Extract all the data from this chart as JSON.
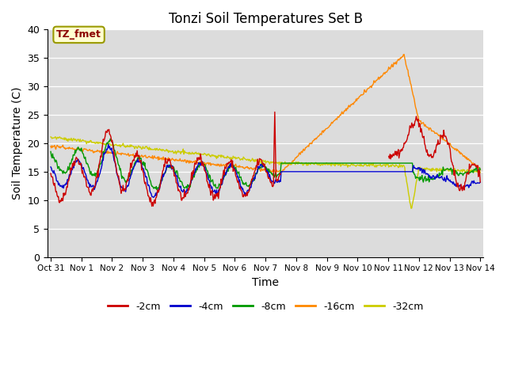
{
  "title": "Tonzi Soil Temperatures Set B",
  "xlabel": "Time",
  "ylabel": "Soil Temperature (C)",
  "ylim": [
    0,
    40
  ],
  "yticks": [
    0,
    5,
    10,
    15,
    20,
    25,
    30,
    35,
    40
  ],
  "annotation_label": "TZ_fmet",
  "annotation_color": "#8B0000",
  "annotation_bg": "#FFFFD0",
  "annotation_edge": "#999900",
  "bg_color": "#E8E8E8",
  "plot_bg": "#DCDCDC",
  "line_colors": {
    "-2cm": "#CC0000",
    "-4cm": "#0000CC",
    "-8cm": "#009900",
    "-16cm": "#FF8800",
    "-32cm": "#CCCC00"
  },
  "xtick_labels": [
    "Oct 31",
    "Nov 1",
    "Nov 2",
    "Nov 3",
    "Nov 4",
    "Nov 5",
    "Nov 6",
    "Nov 7",
    "Nov 8",
    "Nov 9",
    "Nov 10",
    "Nov 11",
    "Nov 12",
    "Nov 13",
    "Nov 14"
  ],
  "legend_labels": [
    "-2cm",
    "-4cm",
    "-8cm",
    "-16cm",
    "-32cm"
  ]
}
